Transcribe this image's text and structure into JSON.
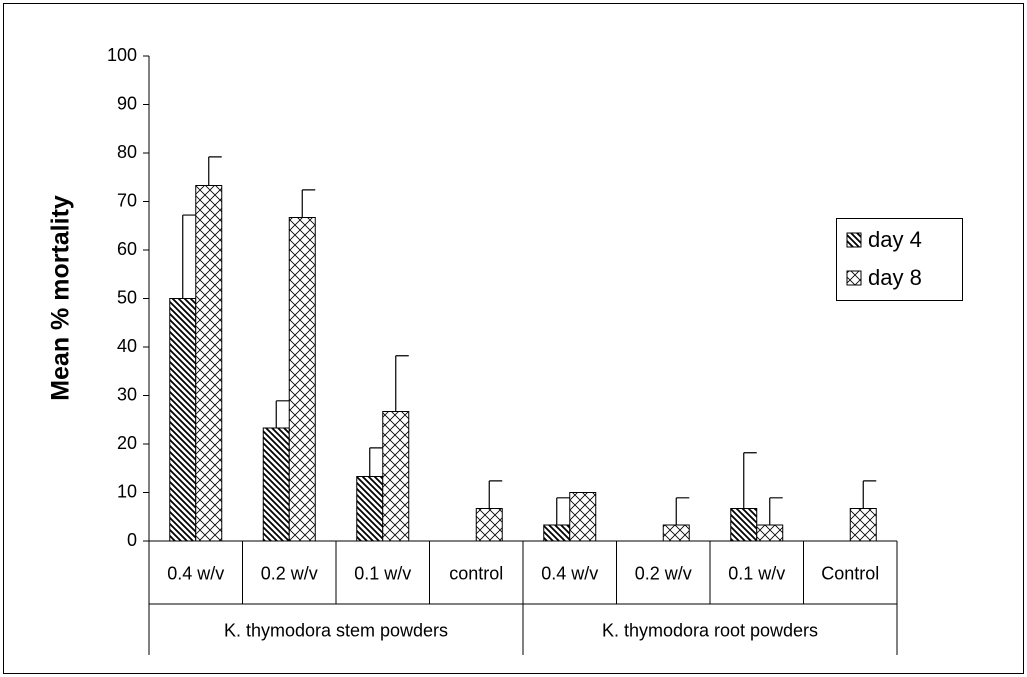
{
  "chart_data": {
    "type": "bar",
    "ylabel": "Mean % mortality",
    "categories": [
      "0.4 w/v",
      "0.2 w/v",
      "0.1 w/v",
      "control",
      "0.4 w/v",
      "0.2 w/v",
      "0.1 w/v",
      "Control"
    ],
    "category_groups": [
      "K. thymodora stem powders",
      "K. thymodora root powders"
    ],
    "series": [
      {
        "name": "day 4",
        "color": "#000000",
        "pattern": "hatch",
        "values": [
          50,
          23.3,
          13.3,
          0,
          3.3,
          0,
          6.7,
          0
        ],
        "errors": [
          17.2,
          5.6,
          5.9,
          null,
          5.6,
          null,
          11.5,
          null
        ]
      },
      {
        "name": "day 8",
        "color": "#000000",
        "pattern": "crosshatch",
        "values": [
          73.3,
          66.7,
          26.7,
          6.7,
          10,
          3.3,
          3.3,
          6.7
        ],
        "errors": [
          5.9,
          5.7,
          11.5,
          5.7,
          null,
          5.6,
          5.6,
          5.7
        ]
      }
    ],
    "ylim": [
      0,
      100
    ],
    "yticks": [
      0,
      10,
      20,
      30,
      40,
      50,
      60,
      70,
      80,
      90,
      100
    ],
    "legend": "right"
  }
}
